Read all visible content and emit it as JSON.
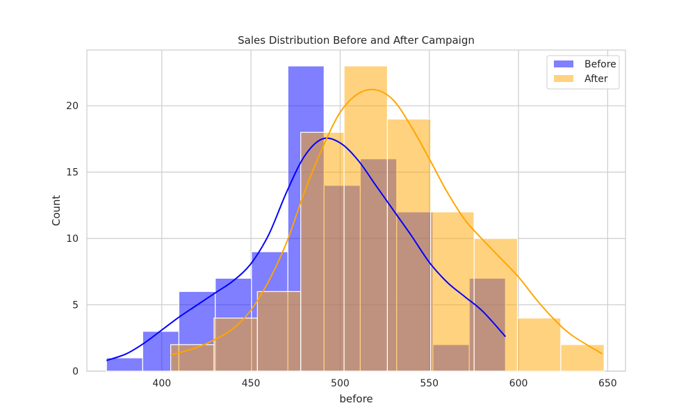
{
  "chart_data": {
    "type": "histogram",
    "title": "Sales Distribution Before and After Campaign",
    "xlabel": "before",
    "ylabel": "Count",
    "xlim": [
      358,
      660
    ],
    "ylim": [
      0,
      24.2
    ],
    "xticks": [
      400,
      450,
      500,
      550,
      600,
      650
    ],
    "yticks": [
      0,
      5,
      10,
      15,
      20
    ],
    "grid": true,
    "legend": "top-right",
    "series": [
      {
        "name": "Before",
        "color": "#0000ff",
        "bins": [
          {
            "x0": 369,
            "x1": 389.3,
            "count": 1
          },
          {
            "x0": 389.3,
            "x1": 409.6,
            "count": 3
          },
          {
            "x0": 409.6,
            "x1": 430,
            "count": 6
          },
          {
            "x0": 430,
            "x1": 450.3,
            "count": 7
          },
          {
            "x0": 450.3,
            "x1": 470.7,
            "count": 9
          },
          {
            "x0": 470.7,
            "x1": 491,
            "count": 23
          },
          {
            "x0": 491,
            "x1": 511.3,
            "count": 14
          },
          {
            "x0": 511.3,
            "x1": 531.7,
            "count": 16
          },
          {
            "x0": 531.7,
            "x1": 552,
            "count": 12
          },
          {
            "x0": 552,
            "x1": 572.4,
            "count": 2
          },
          {
            "x0": 572.4,
            "x1": 592.7,
            "count": 7
          }
        ],
        "kde": [
          [
            369,
            0.8
          ],
          [
            380,
            1.3
          ],
          [
            390,
            2.1
          ],
          [
            400,
            3.1
          ],
          [
            410,
            4.1
          ],
          [
            420,
            5.0
          ],
          [
            430,
            5.9
          ],
          [
            440,
            6.8
          ],
          [
            450,
            8.1
          ],
          [
            460,
            10.3
          ],
          [
            470,
            13.5
          ],
          [
            480,
            16.2
          ],
          [
            490,
            17.5
          ],
          [
            500,
            17.2
          ],
          [
            510,
            15.9
          ],
          [
            520,
            14.0
          ],
          [
            530,
            12.1
          ],
          [
            540,
            10.2
          ],
          [
            550,
            8.2
          ],
          [
            560,
            6.7
          ],
          [
            570,
            5.6
          ],
          [
            580,
            4.5
          ],
          [
            592.7,
            2.6
          ]
        ]
      },
      {
        "name": "After",
        "color": "#ffa500",
        "bins": [
          {
            "x0": 405,
            "x1": 429.3,
            "count": 2
          },
          {
            "x0": 429.3,
            "x1": 453.6,
            "count": 4
          },
          {
            "x0": 453.6,
            "x1": 477.9,
            "count": 6
          },
          {
            "x0": 477.9,
            "x1": 502.2,
            "count": 18
          },
          {
            "x0": 502.2,
            "x1": 526.5,
            "count": 23
          },
          {
            "x0": 526.5,
            "x1": 550.8,
            "count": 19
          },
          {
            "x0": 550.8,
            "x1": 575.1,
            "count": 12
          },
          {
            "x0": 575.1,
            "x1": 599.4,
            "count": 10
          },
          {
            "x0": 599.4,
            "x1": 623.7,
            "count": 4
          },
          {
            "x0": 623.7,
            "x1": 648,
            "count": 2
          }
        ],
        "kde": [
          [
            405,
            1.2
          ],
          [
            420,
            1.8
          ],
          [
            430,
            2.4
          ],
          [
            440,
            3.2
          ],
          [
            450,
            4.6
          ],
          [
            460,
            6.8
          ],
          [
            470,
            9.7
          ],
          [
            480,
            13.5
          ],
          [
            490,
            16.8
          ],
          [
            500,
            19.5
          ],
          [
            510,
            20.9
          ],
          [
            520,
            21.2
          ],
          [
            530,
            20.4
          ],
          [
            540,
            18.4
          ],
          [
            550,
            16.0
          ],
          [
            560,
            13.5
          ],
          [
            570,
            11.4
          ],
          [
            580,
            9.9
          ],
          [
            590,
            8.5
          ],
          [
            600,
            7.1
          ],
          [
            610,
            5.4
          ],
          [
            620,
            3.9
          ],
          [
            630,
            2.7
          ],
          [
            647,
            1.3
          ]
        ]
      }
    ]
  }
}
